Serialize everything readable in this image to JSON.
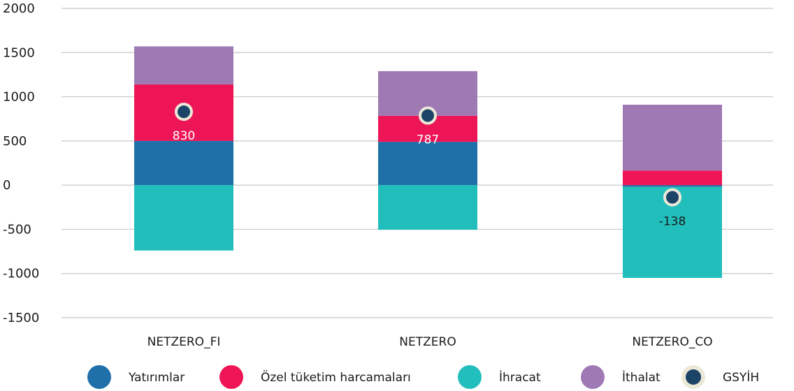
{
  "chart_data": {
    "type": "bar",
    "stacked": true,
    "categories": [
      "NETZERO_FI",
      "NETZERO",
      "NETZERO_CO"
    ],
    "ylim": [
      -1500,
      2000
    ],
    "yticks": [
      2000,
      1500,
      1000,
      500,
      0,
      -500,
      -1000,
      -1500
    ],
    "grid": true,
    "legend_position": "bottom",
    "series": [
      {
        "name": "Yatırımlar",
        "color": "#1f6fa8",
        "values": [
          500,
          490,
          -20
        ]
      },
      {
        "name": "Özel tüketim harcamaları",
        "color": "#ee1556",
        "values": [
          640,
          295,
          165
        ]
      },
      {
        "name": "İhracat",
        "color": "#22bebc",
        "values": [
          -740,
          -505,
          -1030
        ]
      },
      {
        "name": "İthalat",
        "color": "#9e79b4",
        "values": [
          430,
          505,
          745
        ]
      }
    ],
    "line_series": {
      "name": "GSYİH",
      "color": "#1b4466",
      "values": [
        830,
        787,
        -138
      ],
      "labels": [
        "830",
        "787",
        "-138"
      ],
      "label_colors": [
        "#ffffff",
        "#ffffff",
        "#1a1a1a"
      ]
    }
  }
}
